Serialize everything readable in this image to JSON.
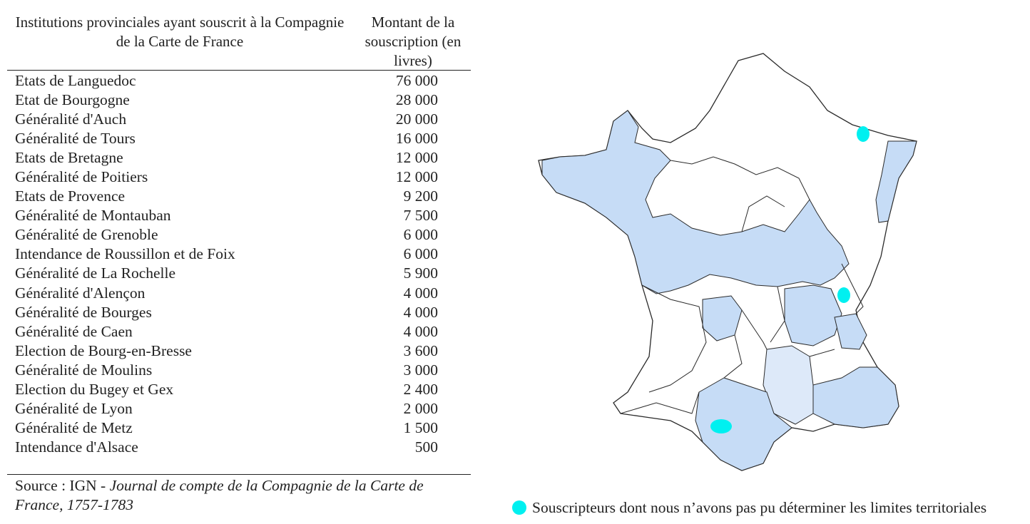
{
  "table": {
    "col1_header": "Institutions provinciales ayant souscrit à la Compagnie de la Carte de France",
    "col2_header": "Montant de la souscription (en livres)",
    "rows": [
      {
        "name": "Etats de Languedoc",
        "amount": "76 000"
      },
      {
        "name": "Etat de Bourgogne",
        "amount": "28 000"
      },
      {
        "name": "Généralité d'Auch",
        "amount": "20 000"
      },
      {
        "name": "Généralité de Tours",
        "amount": "16 000"
      },
      {
        "name": "Etats de Bretagne",
        "amount": "12 000"
      },
      {
        "name": "Généralité de Poitiers",
        "amount": "12 000"
      },
      {
        "name": "Etats de Provence",
        "amount": "9 200"
      },
      {
        "name": "Généralité de Montauban",
        "amount": "7 500"
      },
      {
        "name": "Généralité de Grenoble",
        "amount": "6 000"
      },
      {
        "name": "Intendance de Roussillon et de Foix",
        "amount": "6 000"
      },
      {
        "name": "Généralité de La Rochelle",
        "amount": "5 900"
      },
      {
        "name": "Généralité d'Alençon",
        "amount": "4 000"
      },
      {
        "name": "Généralité de Bourges",
        "amount": "4 000"
      },
      {
        "name": "Généralité de Caen",
        "amount": "4 000"
      },
      {
        "name": "Election de Bourg-en-Bresse",
        "amount": "3 600"
      },
      {
        "name": "Généralité de Moulins",
        "amount": "3 000"
      },
      {
        "name": "Election du Bugey et Gex",
        "amount": "2 400"
      },
      {
        "name": "Généralité de Lyon",
        "amount": "2 000"
      },
      {
        "name": "Généralité de Metz",
        "amount": "1 500"
      },
      {
        "name": "Intendance d'Alsace",
        "amount": "500"
      }
    ]
  },
  "source": {
    "prefix": "Source : IGN - ",
    "title": "Journal de compte de la Compagnie de la Carte de France, 1757-1783"
  },
  "legend": {
    "label": "Souscripteurs dont nous n’avons pas pu déterminer les limites territoriales",
    "color": "#00f0f0"
  },
  "colors": {
    "subscriber_fill": "#c6dcf6",
    "subscriber_fill_light": "#dde9f9",
    "border": "#2a2a2a",
    "marker": "#00f0f0"
  }
}
